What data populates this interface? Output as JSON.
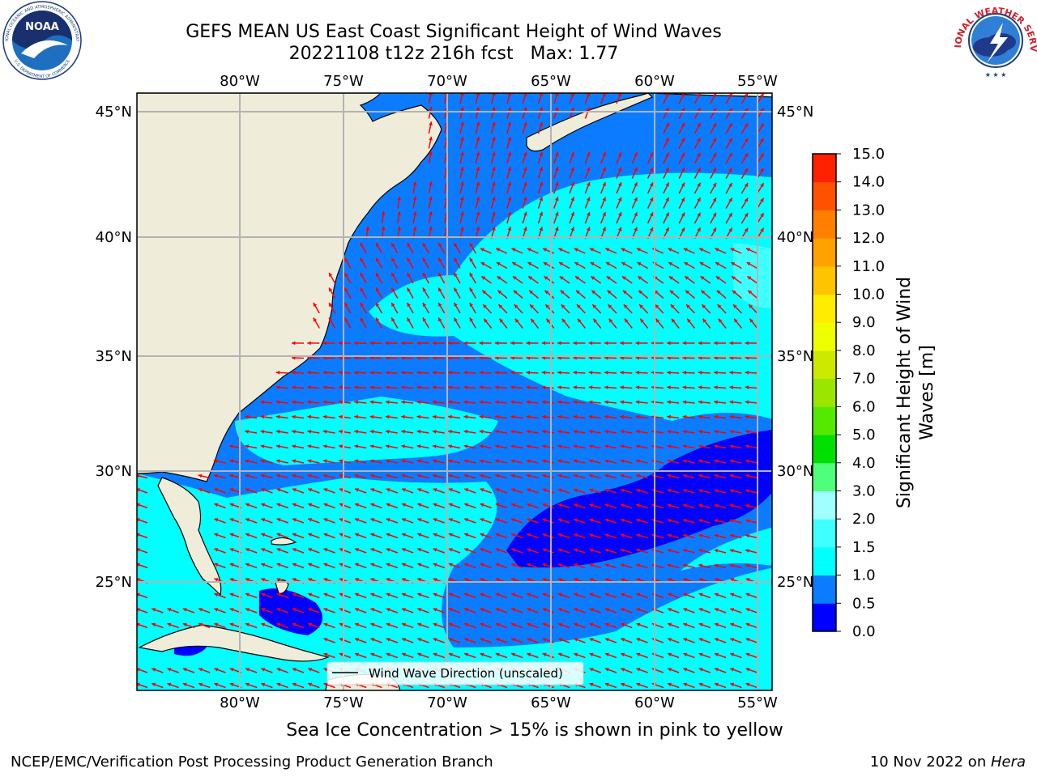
{
  "title": {
    "line1": "GEFS MEAN US East Coast Significant Height of Wind Waves",
    "line2": "20221108 t12z 216h fcst   Max: 1.77"
  },
  "map": {
    "lon_labels": [
      "80°W",
      "75°W",
      "70°W",
      "65°W",
      "60°W",
      "55°W"
    ],
    "lat_labels": [
      "45°N",
      "40°N",
      "35°N",
      "30°N",
      "25°N"
    ],
    "legend_label": "Wind Wave Direction (unscaled)",
    "arrow_color": "#ff0000",
    "land_color": "#efedda"
  },
  "colorbar": {
    "label": "Significant Height of Wind Waves [m]",
    "ticks": [
      "0.0",
      "0.5",
      "1.0",
      "1.5",
      "2.0",
      "3.0",
      "4.0",
      "5.0",
      "6.0",
      "7.0",
      "8.0",
      "9.0",
      "10.0",
      "11.0",
      "12.0",
      "13.0",
      "14.0",
      "15.0"
    ],
    "colors": [
      "#0000ff",
      "#0b7cff",
      "#00ffff",
      "#40ffff",
      "#a0ffff",
      "#4dff7a",
      "#00e000",
      "#55e800",
      "#9ae600",
      "#cde900",
      "#eeff00",
      "#ffec00",
      "#ffc400",
      "#ffa200",
      "#ff7f00",
      "#ff5200",
      "#ff2100"
    ]
  },
  "logos": {
    "noaa": "NOAA",
    "noaa_ring": "NATIONAL OCEANIC AND ATMOSPHERIC ADMINISTRATION",
    "noaa_ring_bottom": "U.S. DEPARTMENT OF COMMERCE",
    "nws_ring": "NATIONAL WEATHER SERVICE"
  },
  "caption": "Sea Ice Concentration > 15% is shown in pink to yellow",
  "footer": {
    "left": "NCEP/EMC/Verification Post Processing Product Generation Branch",
    "right_date": "10 Nov 2022 on ",
    "right_host": "Hera"
  }
}
